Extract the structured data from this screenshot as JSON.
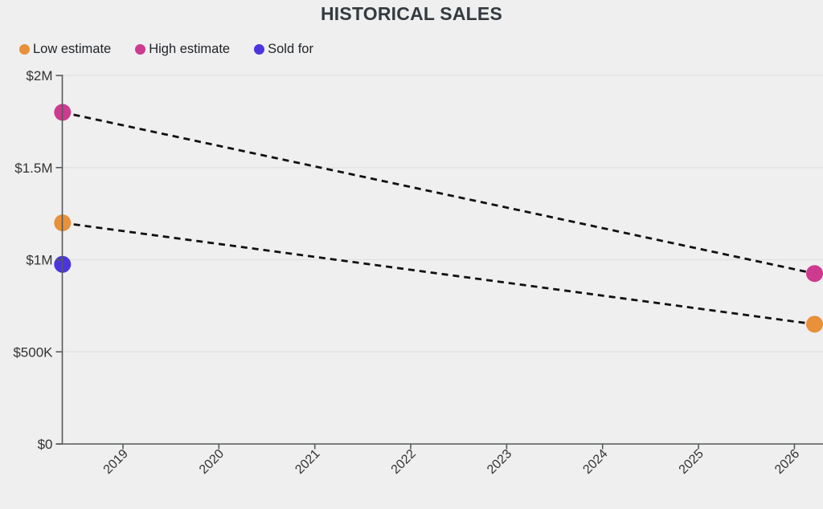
{
  "title": "HISTORICAL SALES",
  "legend": [
    {
      "label": "Low estimate",
      "color": "#e8913a",
      "icon": "circle-icon"
    },
    {
      "label": "High estimate",
      "color": "#ce3a8f",
      "icon": "circle-icon"
    },
    {
      "label": "Sold for",
      "color": "#4b35df",
      "icon": "circle-icon"
    }
  ],
  "colors": {
    "background": "#efefef",
    "title_text": "#343a40",
    "axis": "#55595c",
    "gridline": "#e0e0e0",
    "tick_label": "#333333",
    "trend_line": "#111111"
  },
  "chart_data": {
    "type": "scatter",
    "title": "HISTORICAL SALES",
    "xlabel": "",
    "ylabel": "",
    "grid": true,
    "legend_position": "top-left",
    "xlim": [
      2018.3,
      2026.3
    ],
    "ylim": [
      0,
      2000000
    ],
    "x_ticks": [
      {
        "value": 2019,
        "label": "2019"
      },
      {
        "value": 2020,
        "label": "2020"
      },
      {
        "value": 2021,
        "label": "2021"
      },
      {
        "value": 2022,
        "label": "2022"
      },
      {
        "value": 2023,
        "label": "2023"
      },
      {
        "value": 2024,
        "label": "2024"
      },
      {
        "value": 2025,
        "label": "2025"
      },
      {
        "value": 2026,
        "label": "2026"
      }
    ],
    "y_ticks": [
      {
        "value": 0,
        "label": "$0"
      },
      {
        "value": 500000,
        "label": "$500K"
      },
      {
        "value": 1000000,
        "label": "$1M"
      },
      {
        "value": 1500000,
        "label": "$1.5M"
      },
      {
        "value": 2000000,
        "label": "$2M"
      }
    ],
    "series": [
      {
        "name": "Low estimate",
        "color": "#e8913a",
        "line": "dashed-black",
        "points": [
          {
            "x": 2018.37,
            "y": 1200000
          },
          {
            "x": 2026.21,
            "y": 650000
          }
        ]
      },
      {
        "name": "High estimate",
        "color": "#ce3a8f",
        "line": "dashed-black",
        "points": [
          {
            "x": 2018.37,
            "y": 1800000
          },
          {
            "x": 2026.21,
            "y": 925000
          }
        ]
      },
      {
        "name": "Sold for",
        "color": "#4b35df",
        "line": "none",
        "points": [
          {
            "x": 2018.37,
            "y": 975000
          }
        ]
      }
    ]
  }
}
